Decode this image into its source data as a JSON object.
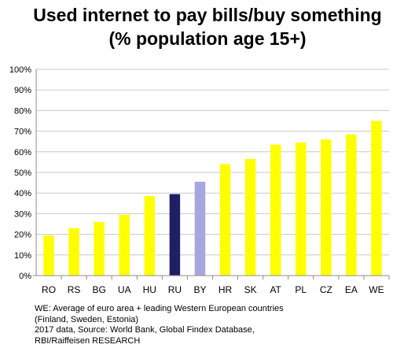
{
  "chart_data": {
    "type": "bar",
    "title_lines": [
      "Used internet to pay bills/buy something",
      "(% population age 15+)"
    ],
    "categories": [
      "RO",
      "RS",
      "BG",
      "UA",
      "HU",
      "RU",
      "BY",
      "HR",
      "SK",
      "AT",
      "PL",
      "CZ",
      "EA",
      "WE"
    ],
    "values": [
      19.5,
      23,
      26,
      29.5,
      38.5,
      39.5,
      45.5,
      54,
      56.5,
      63.5,
      64.5,
      66,
      68.5,
      75
    ],
    "bar_colors": [
      "#ffff00",
      "#ffff00",
      "#ffff00",
      "#ffff00",
      "#ffff00",
      "#1f1f66",
      "#a6a6e0",
      "#ffff00",
      "#ffff00",
      "#ffff00",
      "#ffff00",
      "#ffff00",
      "#ffff00",
      "#ffff00"
    ],
    "ylim": [
      0,
      100
    ],
    "ytick_step": 10,
    "ytick_suffix": "%",
    "xlabel": "",
    "ylabel": "",
    "grid": true,
    "legend": false
  },
  "footnote_lines": [
    "WE: Average of euro area + leading Western European countries",
    "(Finland, Sweden, Estonia)",
    "2017 data, Source: World Bank, Global Findex Database,",
    "RBI/Raiffeisen RESEARCH"
  ],
  "colors": {
    "grid": "#c8c8c8",
    "axis": "#8c8c8c",
    "text": "#000000"
  }
}
